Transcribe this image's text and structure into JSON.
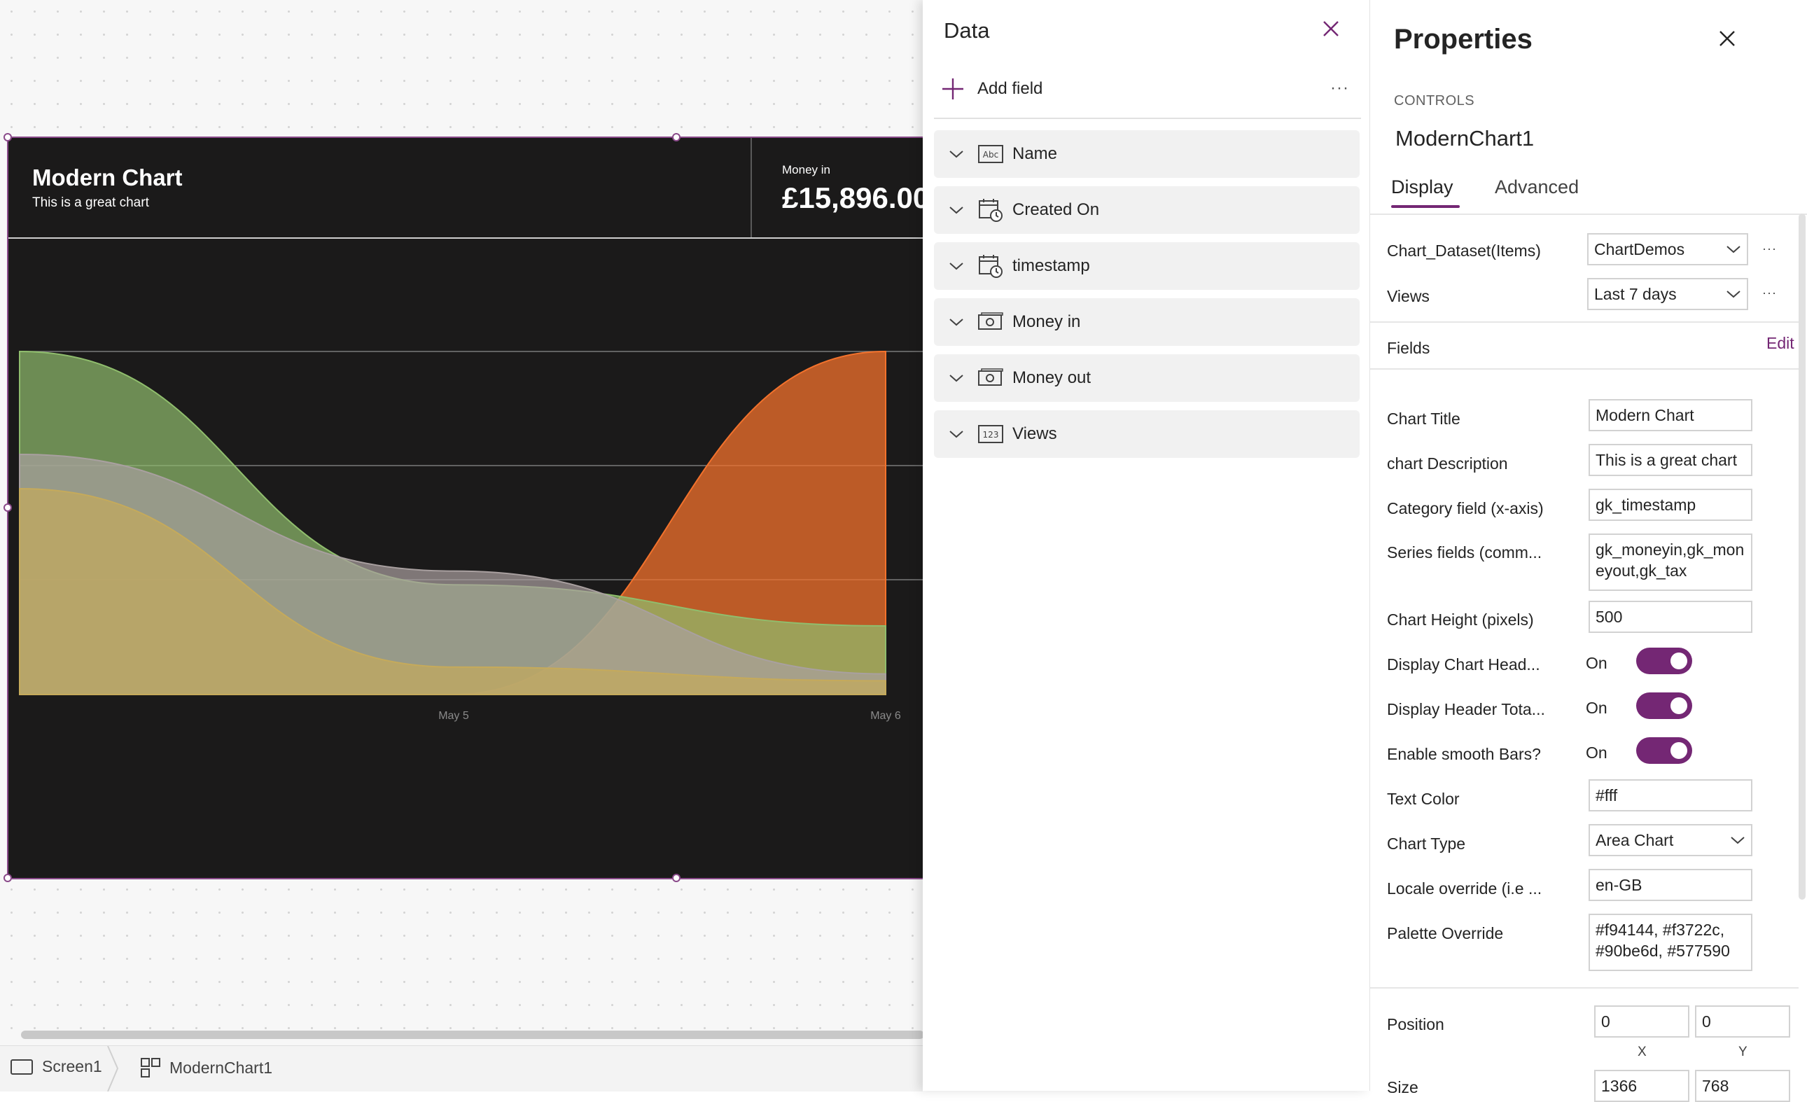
{
  "chart": {
    "title": "Modern Chart",
    "description": "This is a great chart",
    "total_label": "Money in",
    "total_value": "£15,896.00",
    "x_tick_labels": [
      "May 5",
      "May 6"
    ],
    "colors": {
      "series_a": "#577590",
      "series_b": "#f3722c",
      "series_c": "#90be6d",
      "series_d": "#f9c74f"
    }
  },
  "chart_data": {
    "type": "area",
    "title": "Modern Chart",
    "subtitle": "This is a great chart",
    "categories": [
      "",
      "May 5",
      "May 6"
    ],
    "series": [
      {
        "color": "#f3722c",
        "values": [
          null,
          0,
          5
        ]
      },
      {
        "color": "#90be6d",
        "values": [
          5,
          1.6,
          1.0
        ]
      },
      {
        "color": "#a9a0a0",
        "values": [
          3.5,
          1.8,
          0.3
        ]
      },
      {
        "color": "#c5aa5b",
        "values": [
          3,
          0.4,
          0.2
        ]
      }
    ],
    "grid": true
  },
  "statusbar": {
    "screen": "Screen1",
    "control": "ModernChart1"
  },
  "data_panel": {
    "title": "Data",
    "add_field": "Add field",
    "more": "···",
    "fields": [
      {
        "label": "Name",
        "icon": "text-field-icon"
      },
      {
        "label": "Created On",
        "icon": "datetime-field-icon"
      },
      {
        "label": "timestamp",
        "icon": "datetime-field-icon"
      },
      {
        "label": "Money in",
        "icon": "currency-field-icon"
      },
      {
        "label": "Money out",
        "icon": "currency-field-icon"
      },
      {
        "label": "Views",
        "icon": "number-field-icon"
      }
    ]
  },
  "properties": {
    "title": "Properties",
    "controls_label": "CONTROLS",
    "control_name": "ModernChart1",
    "tabs": [
      "Display",
      "Advanced"
    ],
    "dataset_label": "Chart_Dataset(Items)",
    "dataset_value": "ChartDemos",
    "views_label": "Views",
    "views_value": "Last 7 days",
    "more": "···",
    "fields_label": "Fields",
    "fields_edit": "Edit",
    "chart_title_label": "Chart Title",
    "chart_title_value": "Modern Chart",
    "chart_desc_label": "chart Description",
    "chart_desc_value": "This is a great chart",
    "category_label": "Category field (x-axis)",
    "category_value": "gk_timestamp",
    "series_label": "Series fields (comm...",
    "series_value": "gk_moneyin,gk_moneyout,gk_tax",
    "height_label": "Chart Height (pixels)",
    "height_value": "500",
    "display_header_label": "Display Chart Head...",
    "display_totals_label": "Display Header Tota...",
    "smooth_label": "Enable smooth Bars?",
    "on_text": "On",
    "text_color_label": "Text Color",
    "text_color_value": "#fff",
    "chart_type_label": "Chart Type",
    "chart_type_value": "Area Chart",
    "locale_label": "Locale override (i.e ...",
    "locale_value": "en-GB",
    "palette_label": "Palette Override",
    "palette_value": "#f94144, #f3722c, #90be6d, #577590",
    "position_label": "Position",
    "position_x": "0",
    "position_y": "0",
    "x_label": "X",
    "y_label": "Y",
    "size_label": "Size",
    "size_w": "1366",
    "size_h": "768"
  },
  "accent": "#742774"
}
